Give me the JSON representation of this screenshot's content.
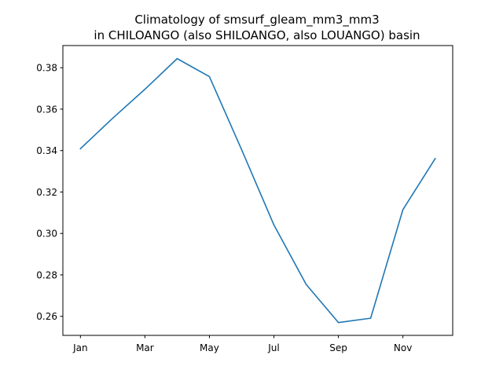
{
  "chart_data": {
    "type": "line",
    "title_line1": "Climatology of smsurf_gleam_mm3_mm3",
    "title_line2": "in CHILOANGO (also SHILOANGO, also LOUANGO) basin",
    "xlabel": "",
    "ylabel": "",
    "x": [
      "Jan",
      "Feb",
      "Mar",
      "Apr",
      "May",
      "Jun",
      "Jul",
      "Aug",
      "Sep",
      "Oct",
      "Nov",
      "Dec"
    ],
    "x_tick_labels": [
      "Jan",
      "Mar",
      "May",
      "Jul",
      "Sep",
      "Nov"
    ],
    "y_ticks": [
      0.26,
      0.28,
      0.3,
      0.32,
      0.34,
      0.36,
      0.38
    ],
    "y_tick_labels": [
      "0.26",
      "0.28",
      "0.30",
      "0.32",
      "0.34",
      "0.36",
      "0.38"
    ],
    "ylim": [
      0.2508,
      0.3907
    ],
    "series": [
      {
        "values": [
          0.3409,
          0.3556,
          0.3696,
          0.3844,
          0.3757,
          0.3404,
          0.3041,
          0.2754,
          0.257,
          0.2591,
          0.3115,
          0.3361
        ],
        "color": "#1f77b4"
      }
    ],
    "grid": false,
    "legend": "none"
  }
}
